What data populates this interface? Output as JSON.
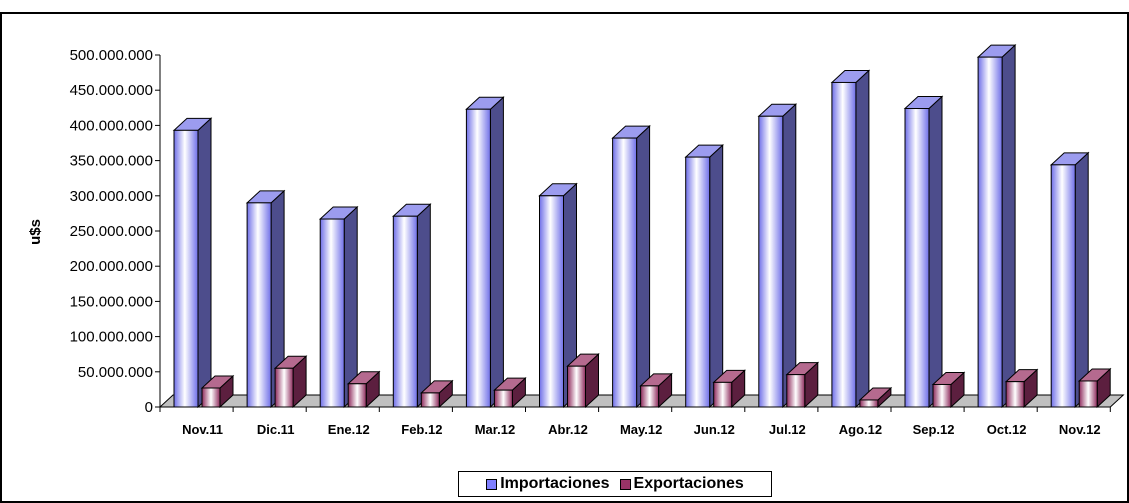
{
  "chart_data": {
    "type": "bar",
    "title": "",
    "xlabel": "",
    "ylabel": "u$s",
    "ylim": [
      0,
      500000000
    ],
    "yticks": [
      "0",
      "50.000.000",
      "100.000.000",
      "150.000.000",
      "200.000.000",
      "250.000.000",
      "300.000.000",
      "350.000.000",
      "400.000.000",
      "450.000.000",
      "500.000.000"
    ],
    "grid": false,
    "legend_position": "bottom",
    "categories": [
      "Nov.11",
      "Dic.11",
      "Ene.12",
      "Feb.12",
      "Mar.12",
      "Abr.12",
      "May.12",
      "Jun.12",
      "Jul.12",
      "Ago.12",
      "Sep.12",
      "Oct.12",
      "Nov.12"
    ],
    "series": [
      {
        "name": "Importaciones",
        "color": "#7f7fff",
        "values": [
          393000000,
          290000000,
          267000000,
          271000000,
          423000000,
          300000000,
          382000000,
          355000000,
          413000000,
          461000000,
          424000000,
          497000000,
          344000000
        ]
      },
      {
        "name": "Exportaciones",
        "color": "#993366",
        "values": [
          27000000,
          55000000,
          33000000,
          20000000,
          24000000,
          58000000,
          30000000,
          35000000,
          46000000,
          10000000,
          32000000,
          36000000,
          37000000
        ]
      }
    ]
  }
}
